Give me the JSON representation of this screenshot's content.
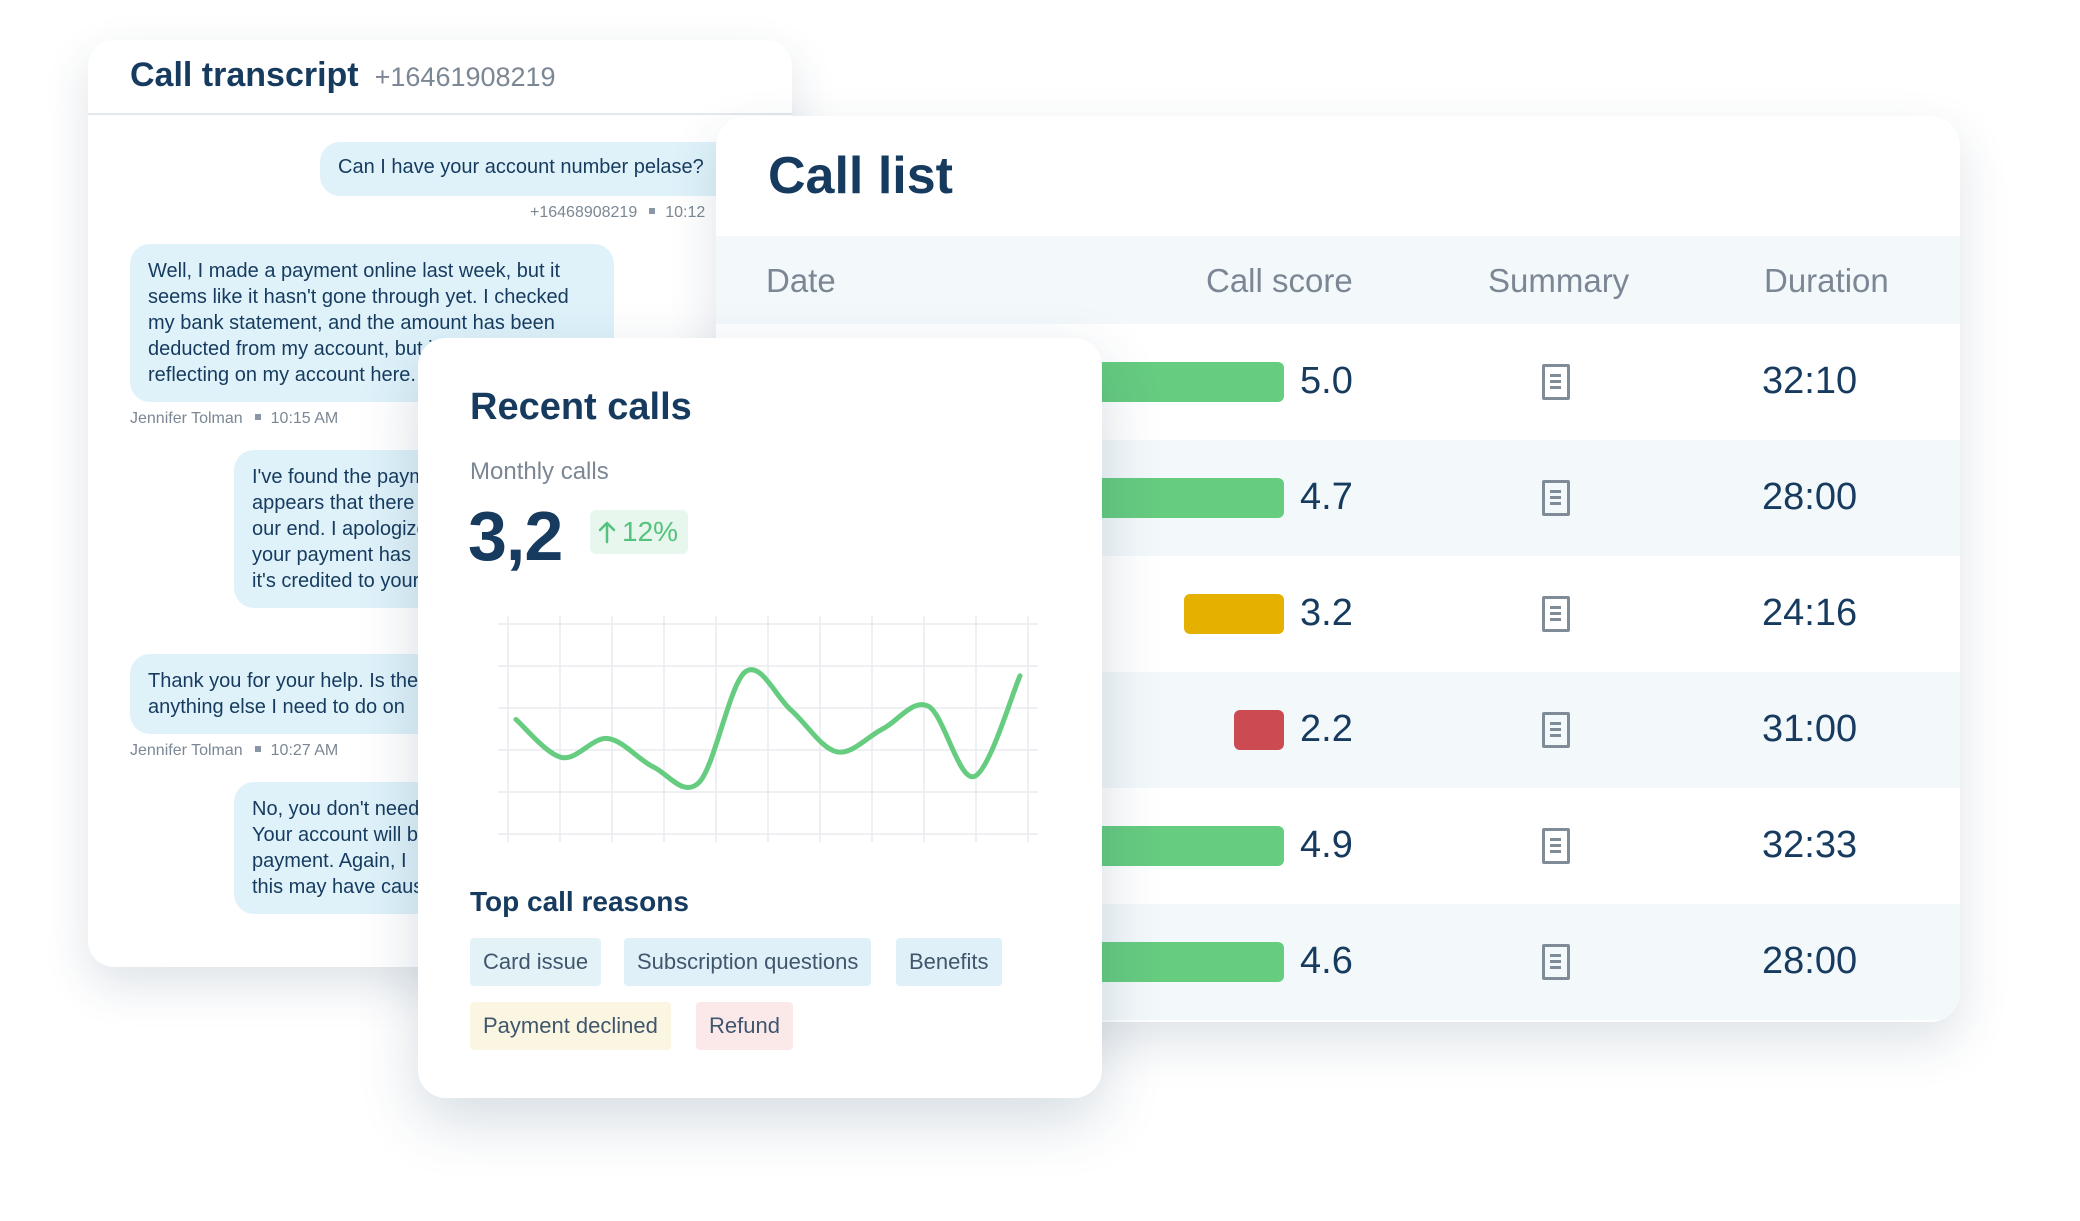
{
  "transcript": {
    "title": "Call transcript",
    "phone": "+16461908219",
    "messages": [
      {
        "text": "Can I have your account number pelase?",
        "meta_name": "+16468908219",
        "meta_time": "10:12"
      },
      {
        "text": "Well, I made a payment online last week, but it\nseems like it hasn't gone through yet. I checked\nmy bank statement, and the amount has been\ndeducted from my account, but it's not\nreflecting on my account here.",
        "meta_name": "Jennifer Tolman",
        "meta_time": "10:15 AM"
      },
      {
        "text": "I've found the payment\nappears that there\nour end. I apologize\nyour payment has\nit's credited to your"
      },
      {
        "text": "Thank you for your help. Is there\nanything else I need to do on",
        "meta_name": "Jennifer Tolman",
        "meta_time": "10:27 AM"
      },
      {
        "text": "No, you don't need\nYour account will be\npayment. Again, I\nthis may have caused"
      }
    ]
  },
  "call_list": {
    "title": "Call list",
    "headers": {
      "date": "Date",
      "score": "Call score",
      "summary": "Summary",
      "duration": "Duration"
    },
    "summary_icon": "document-icon",
    "rows": [
      {
        "score": "5.0",
        "score_value": 5.0,
        "color": "#66cc80",
        "duration": "32:10"
      },
      {
        "score": "4.7",
        "score_value": 4.7,
        "color": "#66cc80",
        "duration": "28:00"
      },
      {
        "score": "3.2",
        "score_value": 3.2,
        "color": "#e6b000",
        "duration": "24:16"
      },
      {
        "score": "2.2",
        "score_value": 2.2,
        "color": "#cc4a52",
        "duration": "31:00"
      },
      {
        "score": "4.9",
        "score_value": 4.9,
        "color": "#66cc80",
        "duration": "32:33"
      },
      {
        "score": "4.6",
        "score_value": 4.6,
        "color": "#66cc80",
        "duration": "28:00"
      }
    ]
  },
  "recent": {
    "title": "Recent calls",
    "subtitle": "Monthly calls",
    "value": "3,2",
    "trend": "12%",
    "trend_icon": "arrow-up-icon",
    "reasons_title": "Top call reasons",
    "reasons": [
      {
        "label": "Card issue",
        "bg": "#e3f2f6"
      },
      {
        "label": "Subscription questions",
        "bg": "#e0f0f8"
      },
      {
        "label": "Benefits",
        "bg": "#e0f0f8"
      },
      {
        "label": "Payment declined",
        "bg": "#fbf6e2"
      },
      {
        "label": "Refund",
        "bg": "#fbe9e9"
      }
    ]
  },
  "chart_data": {
    "type": "line",
    "title": "",
    "xlabel": "",
    "ylabel": "",
    "grid": true,
    "color": "#66cc80",
    "series": [
      {
        "values": [
          0.55,
          0.35,
          0.45,
          0.3,
          0.22,
          0.8,
          0.6,
          0.38,
          0.5,
          0.62,
          0.25,
          0.78
        ]
      }
    ],
    "ylim": [
      0,
      1
    ]
  }
}
